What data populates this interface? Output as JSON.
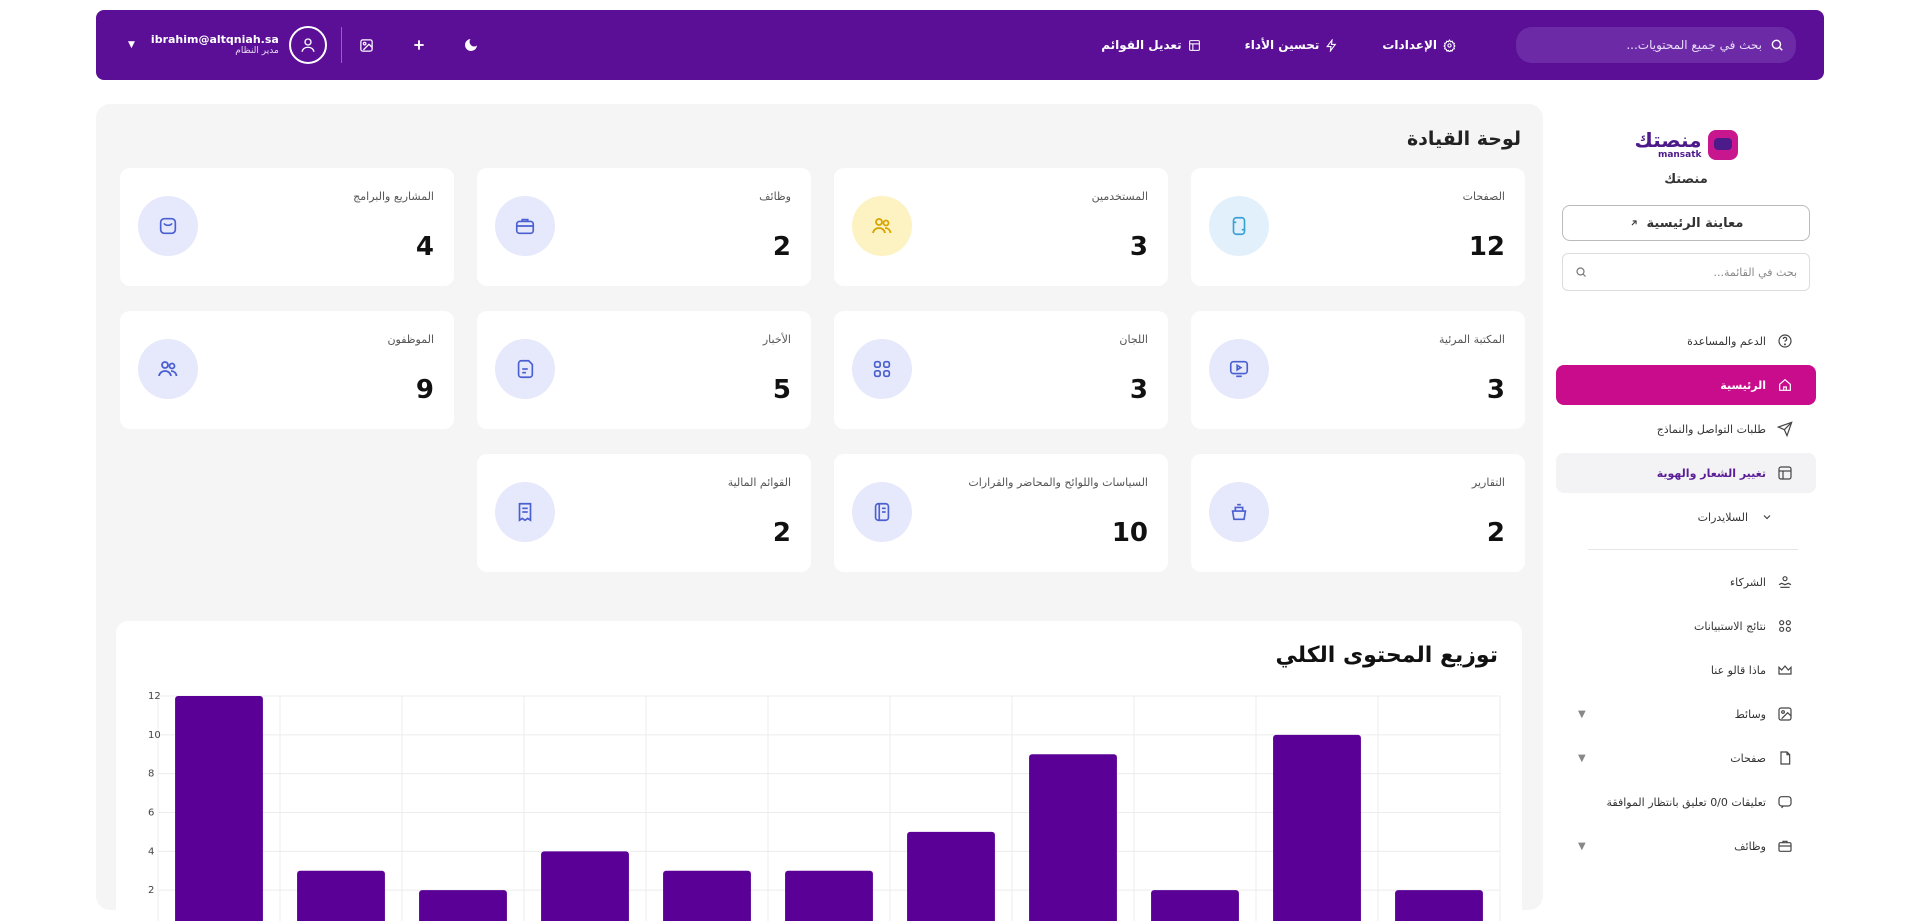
{
  "header": {
    "search_placeholder": "بحث في جميع المحتويات...",
    "nav": [
      {
        "label": "الإعدادات",
        "icon": "gear-icon"
      },
      {
        "label": "تحسين الأداء",
        "icon": "lightning-icon"
      },
      {
        "label": "تعديل القوائم",
        "icon": "layout-icon"
      }
    ],
    "user_email": "ibrahim@altqniah.sa",
    "user_role": "مدير النظام"
  },
  "sidebar": {
    "logo_text": "منصتك",
    "logo_subtext": "mansatk",
    "site_name": "منصتك",
    "preview_button": "معاينة الرئيسية",
    "search_placeholder": "بحث في القائمة...",
    "items": [
      {
        "label": "الدعم والمساعدة",
        "icon": "help-circle-icon",
        "state": "normal"
      },
      {
        "label": "الرئيسية",
        "icon": "home-icon",
        "state": "active"
      },
      {
        "label": "طلبات التواصل والنماذج",
        "icon": "send-icon",
        "state": "normal"
      },
      {
        "label": "تغيير الشعار والهوية",
        "icon": "layout-icon",
        "state": "soft"
      },
      {
        "label": "السلايدرات",
        "icon": "chevron-down-icon",
        "state": "sub"
      },
      {
        "label": "الشركاء",
        "icon": "handshake-icon",
        "state": "normal"
      },
      {
        "label": "نتائج الاستبيانات",
        "icon": "grid-icon",
        "state": "normal"
      },
      {
        "label": "ماذا قالو عنا",
        "icon": "crown-icon",
        "state": "normal"
      },
      {
        "label": "وسائط",
        "icon": "image-icon",
        "state": "expand"
      },
      {
        "label": "صفحات",
        "icon": "pages-icon",
        "state": "expand"
      },
      {
        "label": "تعليقات 0/0 تعليق بانتظار الموافقة",
        "icon": "comment-icon",
        "state": "normal"
      },
      {
        "label": "وظائف",
        "icon": "briefcase-icon",
        "state": "expand"
      }
    ]
  },
  "dashboard": {
    "title": "لوحة القيادة",
    "cards": [
      {
        "label": "الصفحات",
        "value": "12",
        "icon": "page-icon",
        "tint": "lblue"
      },
      {
        "label": "المستخدمين",
        "value": "3",
        "icon": "users-icon",
        "tint": "yellow"
      },
      {
        "label": "وظائف",
        "value": "2",
        "icon": "briefcase-icon",
        "tint": "blue"
      },
      {
        "label": "المشاريع والبرامج",
        "value": "4",
        "icon": "bag-icon",
        "tint": "blue"
      },
      {
        "label": "المكتبة المرئية",
        "value": "3",
        "icon": "monitor-play-icon",
        "tint": "blue"
      },
      {
        "label": "اللجان",
        "value": "3",
        "icon": "apps-icon",
        "tint": "blue"
      },
      {
        "label": "الأخبار",
        "value": "5",
        "icon": "news-icon",
        "tint": "blue"
      },
      {
        "label": "الموظفون",
        "value": "9",
        "icon": "people-icon",
        "tint": "blue"
      },
      {
        "label": "التقارير",
        "value": "2",
        "icon": "pot-icon",
        "tint": "blue"
      },
      {
        "label": "السياسات واللوائح والمحاضر والقرارات",
        "value": "10",
        "icon": "book-icon",
        "tint": "blue"
      },
      {
        "label": "القوائم المالية",
        "value": "2",
        "icon": "receipt-icon",
        "tint": "blue"
      }
    ]
  },
  "chart_data": {
    "type": "bar",
    "title": "توزيع المحتوى الكلي",
    "values": [
      12,
      3,
      2,
      4,
      3,
      3,
      5,
      9,
      2,
      10,
      2
    ],
    "yticks": [
      "2",
      "4",
      "6",
      "8",
      "10",
      "12"
    ],
    "ylim": [
      0,
      12
    ],
    "grid": true,
    "bar_color": "#5a0096"
  },
  "colors": {
    "brand": "#5a0f96",
    "active": "#c80c8c"
  }
}
